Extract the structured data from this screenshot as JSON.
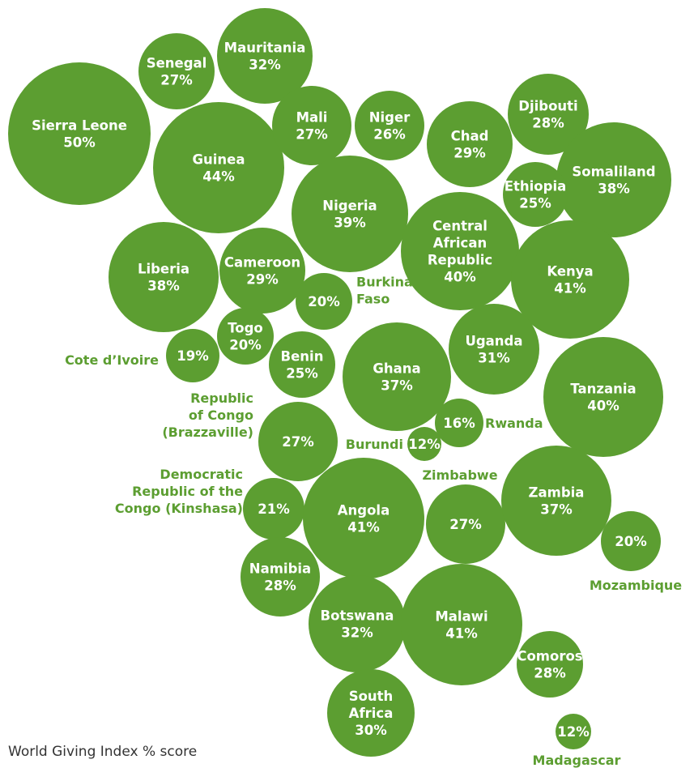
{
  "chart_data": {
    "type": "bubble",
    "caption": "World Giving Index % score",
    "bubble_color": "#5c9e31",
    "label_color": "#ffffff",
    "outside_label_color": "#5c9e31",
    "points": [
      {
        "country": [
          "Sierra Leone"
        ],
        "value": 50
      },
      {
        "country": [
          "Senegal"
        ],
        "value": 27
      },
      {
        "country": [
          "Mauritania"
        ],
        "value": 32
      },
      {
        "country": [
          "Guinea"
        ],
        "value": 44
      },
      {
        "country": [
          "Mali"
        ],
        "value": 27
      },
      {
        "country": [
          "Niger"
        ],
        "value": 26
      },
      {
        "country": [
          "Chad"
        ],
        "value": 29
      },
      {
        "country": [
          "Djibouti"
        ],
        "value": 28
      },
      {
        "country": [
          "Somaliland"
        ],
        "value": 38
      },
      {
        "country": [
          "Ethiopia"
        ],
        "value": 25
      },
      {
        "country": [
          "Nigeria"
        ],
        "value": 39
      },
      {
        "country": [
          "Central",
          "African",
          "Republic"
        ],
        "value": 40
      },
      {
        "country": [
          "Kenya"
        ],
        "value": 41
      },
      {
        "country": [
          "Liberia"
        ],
        "value": 38
      },
      {
        "country": [
          "Cameroon"
        ],
        "value": 29
      },
      {
        "country": [
          "Burkina",
          "Faso"
        ],
        "value": 20
      },
      {
        "country": [
          "Togo"
        ],
        "value": 20
      },
      {
        "country": [
          "Cote d’Ivoire"
        ],
        "value": 19
      },
      {
        "country": [
          "Benin"
        ],
        "value": 25
      },
      {
        "country": [
          "Ghana"
        ],
        "value": 37
      },
      {
        "country": [
          "Uganda"
        ],
        "value": 31
      },
      {
        "country": [
          "Tanzania"
        ],
        "value": 40
      },
      {
        "country": [
          "Rwanda"
        ],
        "value": 16
      },
      {
        "country": [
          "Burundi"
        ],
        "value": 12
      },
      {
        "country": [
          "Republic",
          "of Congo",
          "(Brazzaville)"
        ],
        "value": 27
      },
      {
        "country": [
          "Zimbabwe"
        ],
        "value": 27
      },
      {
        "country": [
          "Zambia"
        ],
        "value": 37
      },
      {
        "country": [
          "Democratic",
          "Republic of the",
          "Congo (Kinshasa)"
        ],
        "value": 21
      },
      {
        "country": [
          "Angola"
        ],
        "value": 41
      },
      {
        "country": [
          "Mozambique"
        ],
        "value": 20
      },
      {
        "country": [
          "Namibia"
        ],
        "value": 28
      },
      {
        "country": [
          "Botswana"
        ],
        "value": 32
      },
      {
        "country": [
          "Malawi"
        ],
        "value": 41
      },
      {
        "country": [
          "Comoros"
        ],
        "value": 28
      },
      {
        "country": [
          "South",
          "Africa"
        ],
        "value": 30
      },
      {
        "country": [
          "Madagascar"
        ],
        "value": 12
      }
    ]
  }
}
